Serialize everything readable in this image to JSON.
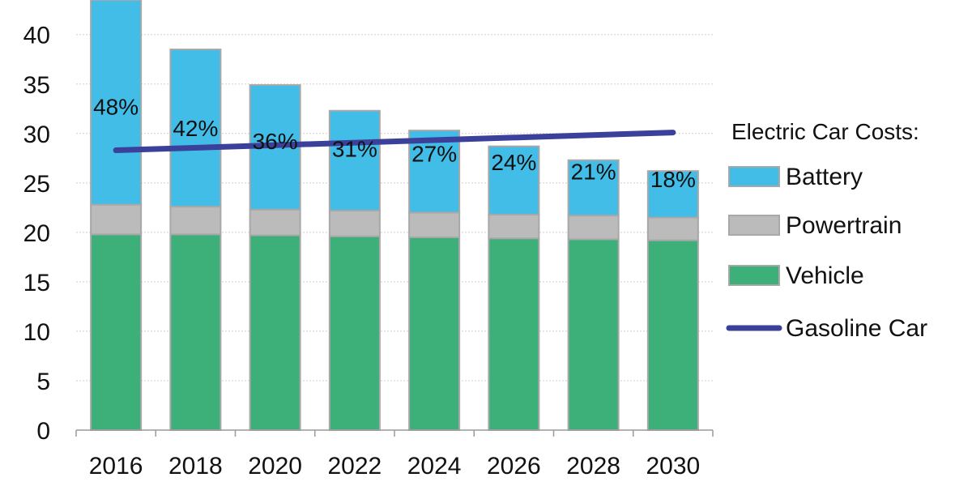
{
  "chart_data": {
    "type": "bar",
    "stacked": true,
    "categories": [
      "2016",
      "2018",
      "2020",
      "2022",
      "2024",
      "2026",
      "2028",
      "2030"
    ],
    "ylim": [
      0,
      43.5
    ],
    "yticks": [
      0,
      5,
      10,
      15,
      20,
      25,
      30,
      35,
      40
    ],
    "grid": true,
    "series": [
      {
        "name": "Vehicle",
        "color": "#3daf78",
        "values": [
          19.8,
          19.8,
          19.7,
          19.6,
          19.5,
          19.4,
          19.3,
          19.2
        ]
      },
      {
        "name": "Powertrain",
        "color": "#bbbbbb",
        "values": [
          3.0,
          2.8,
          2.6,
          2.6,
          2.5,
          2.4,
          2.4,
          2.3
        ]
      },
      {
        "name": "Battery",
        "color": "#42bde8",
        "values": [
          20.7,
          15.9,
          12.6,
          10.1,
          8.3,
          6.9,
          5.6,
          4.7
        ]
      }
    ],
    "battery_share_labels": [
      "48%",
      "42%",
      "36%",
      "31%",
      "27%",
      "24%",
      "21%",
      "18%"
    ],
    "line_series": {
      "name": "Gasoline Car",
      "color": "#3b419a",
      "start": 28.3,
      "end": 30.1
    },
    "legend": {
      "title": "Electric Car Costs:",
      "position": "right",
      "entries": [
        "Battery",
        "Powertrain",
        "Vehicle",
        "Gasoline Car"
      ]
    },
    "title": "",
    "xlabel": "",
    "ylabel": ""
  }
}
